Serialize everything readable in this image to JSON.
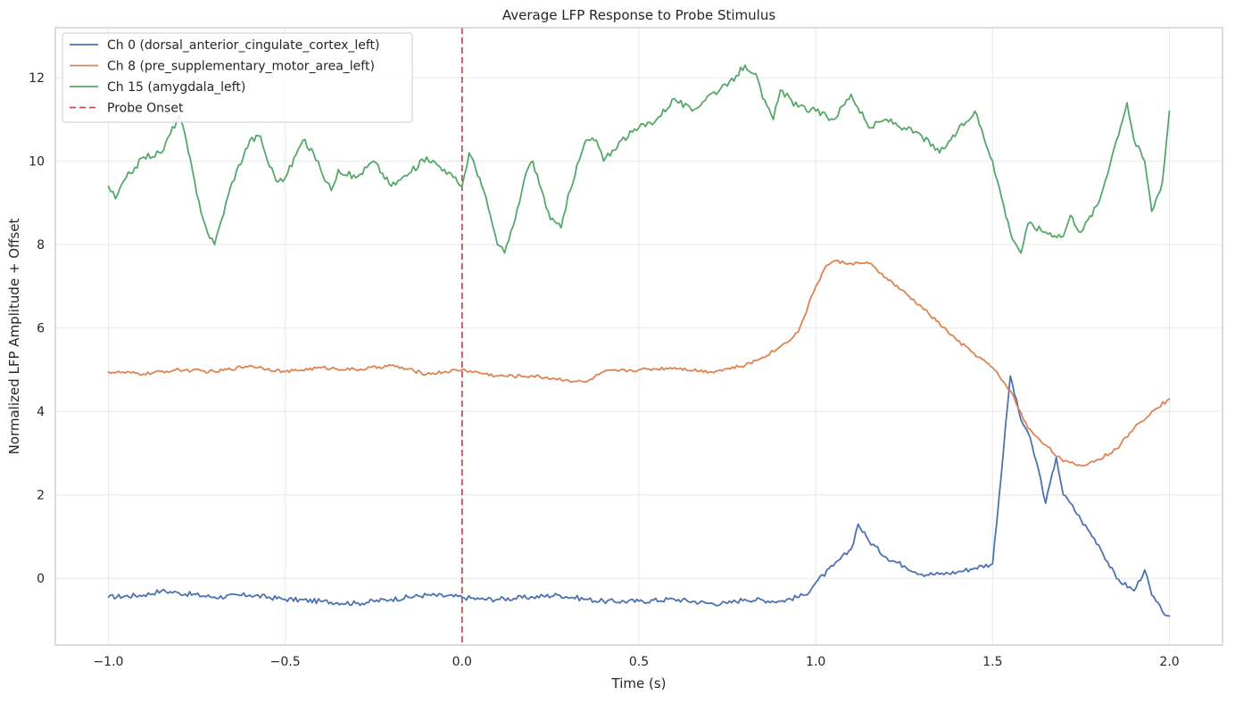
{
  "chart_data": {
    "type": "line",
    "title": "Average LFP Response to Probe Stimulus",
    "xlabel": "Time (s)",
    "ylabel": "Normalized LFP Amplitude + Offset",
    "xlim": [
      -1.15,
      2.15
    ],
    "ylim": [
      -1.6,
      13.2
    ],
    "xticks": [
      -1.0,
      -0.5,
      0.0,
      0.5,
      1.0,
      1.5,
      2.0
    ],
    "xtick_labels": [
      "−1.0",
      "−0.5",
      "0.0",
      "0.5",
      "1.0",
      "1.5",
      "2.0"
    ],
    "yticks": [
      0,
      2,
      4,
      6,
      8,
      10,
      12
    ],
    "ytick_labels": [
      "0",
      "2",
      "4",
      "6",
      "8",
      "10",
      "12"
    ],
    "grid": true,
    "legend_position": "top-left",
    "series": [
      {
        "name": "Ch 0 (dorsal_anterior_cingulate_cortex_left)",
        "color": "#4c72b0",
        "x": [
          -1.0,
          -0.9,
          -0.85,
          -0.8,
          -0.7,
          -0.6,
          -0.5,
          -0.4,
          -0.3,
          -0.2,
          -0.1,
          0.0,
          0.05,
          0.1,
          0.2,
          0.27,
          0.35,
          0.4,
          0.5,
          0.6,
          0.7,
          0.75,
          0.8,
          0.9,
          0.97,
          1.0,
          1.05,
          1.1,
          1.12,
          1.15,
          1.2,
          1.25,
          1.3,
          1.35,
          1.4,
          1.45,
          1.5,
          1.53,
          1.55,
          1.58,
          1.6,
          1.63,
          1.65,
          1.68,
          1.7,
          1.72,
          1.75,
          1.8,
          1.85,
          1.9,
          1.93,
          1.95,
          1.98,
          2.0
        ],
        "y": [
          -0.45,
          -0.4,
          -0.3,
          -0.35,
          -0.45,
          -0.4,
          -0.5,
          -0.55,
          -0.6,
          -0.5,
          -0.4,
          -0.45,
          -0.5,
          -0.5,
          -0.45,
          -0.4,
          -0.5,
          -0.55,
          -0.55,
          -0.5,
          -0.6,
          -0.6,
          -0.5,
          -0.55,
          -0.4,
          -0.1,
          0.3,
          0.7,
          1.3,
          0.9,
          0.5,
          0.3,
          0.1,
          0.1,
          0.15,
          0.25,
          0.35,
          3.0,
          4.85,
          3.8,
          3.5,
          2.6,
          1.8,
          2.9,
          2.0,
          1.8,
          1.4,
          0.8,
          0.0,
          -0.3,
          0.2,
          -0.4,
          -0.8,
          -0.9
        ]
      },
      {
        "name": "Ch 8 (pre_supplementary_motor_area_left)",
        "color": "#dd8452",
        "x": [
          -1.0,
          -0.9,
          -0.8,
          -0.7,
          -0.6,
          -0.5,
          -0.4,
          -0.3,
          -0.2,
          -0.1,
          0.0,
          0.1,
          0.2,
          0.3,
          0.35,
          0.4,
          0.5,
          0.6,
          0.7,
          0.8,
          0.85,
          0.9,
          0.95,
          1.0,
          1.03,
          1.05,
          1.1,
          1.15,
          1.2,
          1.3,
          1.4,
          1.5,
          1.55,
          1.6,
          1.65,
          1.7,
          1.75,
          1.8,
          1.85,
          1.9,
          1.95,
          2.0
        ],
        "y": [
          4.95,
          4.9,
          5.0,
          4.95,
          5.1,
          4.95,
          5.05,
          5.0,
          5.1,
          4.9,
          5.0,
          4.85,
          4.85,
          4.75,
          4.7,
          4.95,
          5.0,
          5.05,
          4.95,
          5.1,
          5.3,
          5.55,
          5.9,
          7.0,
          7.5,
          7.6,
          7.55,
          7.55,
          7.2,
          6.5,
          5.7,
          5.05,
          4.5,
          3.6,
          3.2,
          2.8,
          2.7,
          2.85,
          3.1,
          3.6,
          4.0,
          4.3
        ]
      },
      {
        "name": "Ch 15 (amygdala_left)",
        "color": "#55a868",
        "x": [
          -1.0,
          -0.98,
          -0.95,
          -0.9,
          -0.85,
          -0.8,
          -0.78,
          -0.75,
          -0.72,
          -0.7,
          -0.68,
          -0.65,
          -0.6,
          -0.57,
          -0.55,
          -0.52,
          -0.5,
          -0.45,
          -0.42,
          -0.4,
          -0.37,
          -0.35,
          -0.3,
          -0.25,
          -0.2,
          -0.15,
          -0.1,
          -0.05,
          0.0,
          0.02,
          0.05,
          0.08,
          0.1,
          0.12,
          0.15,
          0.18,
          0.2,
          0.25,
          0.28,
          0.3,
          0.35,
          0.38,
          0.4,
          0.45,
          0.5,
          0.55,
          0.6,
          0.65,
          0.7,
          0.75,
          0.8,
          0.83,
          0.85,
          0.88,
          0.9,
          0.95,
          1.0,
          1.05,
          1.1,
          1.15,
          1.2,
          1.25,
          1.3,
          1.35,
          1.4,
          1.45,
          1.5,
          1.55,
          1.58,
          1.6,
          1.65,
          1.7,
          1.72,
          1.75,
          1.8,
          1.85,
          1.88,
          1.9,
          1.93,
          1.95,
          1.98,
          2.0
        ],
        "y": [
          9.4,
          9.1,
          9.6,
          10.1,
          10.2,
          11.1,
          10.5,
          9.2,
          8.3,
          8.0,
          8.6,
          9.5,
          10.5,
          10.6,
          10.0,
          9.5,
          9.6,
          10.5,
          10.2,
          9.8,
          9.3,
          9.8,
          9.6,
          10.0,
          9.4,
          9.7,
          10.1,
          9.8,
          9.4,
          10.2,
          9.6,
          8.7,
          8.0,
          7.8,
          8.6,
          9.7,
          10.0,
          8.6,
          8.4,
          9.2,
          10.5,
          10.5,
          10.0,
          10.5,
          10.8,
          11.0,
          11.5,
          11.2,
          11.6,
          11.8,
          12.3,
          12.1,
          11.5,
          11.0,
          11.7,
          11.3,
          11.2,
          11.0,
          11.6,
          10.8,
          11.0,
          10.8,
          10.6,
          10.2,
          10.7,
          11.2,
          10.0,
          8.3,
          7.8,
          8.5,
          8.3,
          8.2,
          8.7,
          8.3,
          9.0,
          10.5,
          11.4,
          10.5,
          10.0,
          8.8,
          9.5,
          11.2
        ]
      }
    ],
    "reference_lines": [
      {
        "name": "Probe Onset",
        "x": 0.0,
        "color": "#c44e52",
        "style": "dashed"
      }
    ]
  }
}
